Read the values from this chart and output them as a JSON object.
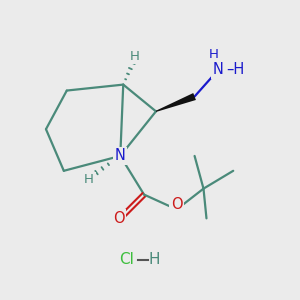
{
  "background_color": "#ebebeb",
  "bond_color": "#4a8a7a",
  "N_color": "#1a1acc",
  "O_color": "#cc1a1a",
  "NH2_color": "#1a1acc",
  "Cl_color": "#3dbe3d",
  "H_color": "#4a8a7a",
  "bond_lw": 1.6,
  "figsize": [
    3.0,
    3.0
  ],
  "dpi": 100,
  "xlim": [
    0,
    10
  ],
  "ylim": [
    0,
    10
  ]
}
